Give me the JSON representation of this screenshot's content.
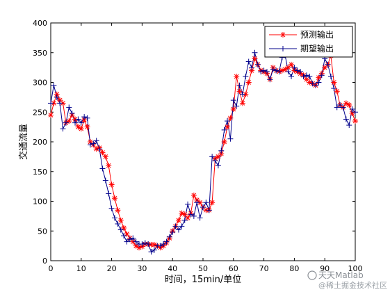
{
  "chart_data": {
    "type": "line",
    "xlabel": "时间，15min/单位",
    "ylabel": "交通流量",
    "xlim": [
      0,
      100
    ],
    "ylim": [
      0,
      400
    ],
    "xticks": [
      0,
      10,
      20,
      30,
      40,
      50,
      60,
      70,
      80,
      90,
      100
    ],
    "yticks": [
      0,
      50,
      100,
      150,
      200,
      250,
      300,
      350,
      400
    ],
    "grid": false,
    "legend_position": "top-right",
    "series": [
      {
        "name": "预测输出",
        "color": "#ff0000",
        "marker": "asterisk",
        "x": [
          0,
          1,
          2,
          3,
          4,
          5,
          6,
          7,
          8,
          9,
          10,
          11,
          12,
          13,
          14,
          15,
          16,
          17,
          18,
          19,
          20,
          21,
          22,
          23,
          24,
          25,
          26,
          27,
          28,
          29,
          30,
          31,
          32,
          33,
          34,
          35,
          36,
          37,
          38,
          39,
          40,
          41,
          42,
          43,
          44,
          45,
          46,
          47,
          48,
          49,
          50,
          51,
          52,
          53,
          54,
          55,
          56,
          57,
          58,
          59,
          60,
          61,
          62,
          63,
          64,
          65,
          66,
          67,
          68,
          69,
          70,
          71,
          72,
          73,
          74,
          75,
          76,
          77,
          78,
          79,
          80,
          81,
          82,
          83,
          84,
          85,
          86,
          87,
          88,
          89,
          90,
          91,
          92,
          93,
          94,
          95,
          96,
          97,
          98,
          99,
          100
        ],
        "values": [
          245,
          265,
          280,
          270,
          265,
          232,
          235,
          245,
          238,
          225,
          222,
          237,
          225,
          200,
          195,
          188,
          190,
          182,
          175,
          160,
          128,
          105,
          85,
          68,
          55,
          45,
          38,
          32,
          25,
          22,
          24,
          28,
          28,
          27,
          27,
          25,
          22,
          25,
          30,
          38,
          50,
          58,
          68,
          80,
          78,
          72,
          80,
          110,
          102,
          98,
          90,
          85,
          85,
          98,
          172,
          175,
          180,
          200,
          225,
          240,
          255,
          310,
          285,
          265,
          280,
          300,
          320,
          340,
          330,
          320,
          318,
          315,
          305,
          325,
          320,
          318,
          320,
          322,
          325,
          330,
          320,
          318,
          315,
          312,
          305,
          300,
          298,
          295,
          308,
          315,
          325,
          330,
          345,
          300,
          285,
          262,
          258,
          265,
          262,
          248,
          235
        ]
      },
      {
        "name": "期望输出",
        "color": "#00008b",
        "marker": "plus",
        "x": [
          0,
          1,
          2,
          3,
          4,
          5,
          6,
          7,
          8,
          9,
          10,
          11,
          12,
          13,
          14,
          15,
          16,
          17,
          18,
          19,
          20,
          21,
          22,
          23,
          24,
          25,
          26,
          27,
          28,
          29,
          30,
          31,
          32,
          33,
          34,
          35,
          36,
          37,
          38,
          39,
          40,
          41,
          42,
          43,
          44,
          45,
          46,
          47,
          48,
          49,
          50,
          51,
          52,
          53,
          54,
          55,
          56,
          57,
          58,
          59,
          60,
          61,
          62,
          63,
          64,
          65,
          66,
          67,
          68,
          69,
          70,
          71,
          72,
          73,
          74,
          75,
          76,
          77,
          78,
          79,
          80,
          81,
          82,
          83,
          84,
          85,
          86,
          87,
          88,
          89,
          90,
          91,
          92,
          93,
          94,
          95,
          96,
          97,
          98,
          99,
          100
        ],
        "values": [
          265,
          295,
          275,
          265,
          222,
          232,
          258,
          248,
          232,
          238,
          232,
          242,
          240,
          195,
          197,
          202,
          188,
          155,
          135,
          113,
          88,
          72,
          62,
          52,
          42,
          32,
          36,
          38,
          32,
          28,
          28,
          30,
          28,
          15,
          18,
          25,
          25,
          28,
          32,
          40,
          48,
          58,
          52,
          58,
          68,
          95,
          78,
          75,
          98,
          72,
          90,
          98,
          85,
          175,
          168,
          160,
          185,
          220,
          235,
          205,
          270,
          260,
          295,
          280,
          310,
          335,
          325,
          350,
          330,
          318,
          320,
          318,
          305,
          322,
          320,
          318,
          342,
          345,
          318,
          310,
          325,
          320,
          318,
          310,
          312,
          310,
          298,
          295,
          300,
          312,
          340,
          330,
          310,
          290,
          258,
          262,
          258,
          238,
          228,
          255,
          250
        ]
      }
    ]
  },
  "watermark": {
    "brand": "天天Matlab",
    "site": "@稀土掘金技术社区"
  }
}
